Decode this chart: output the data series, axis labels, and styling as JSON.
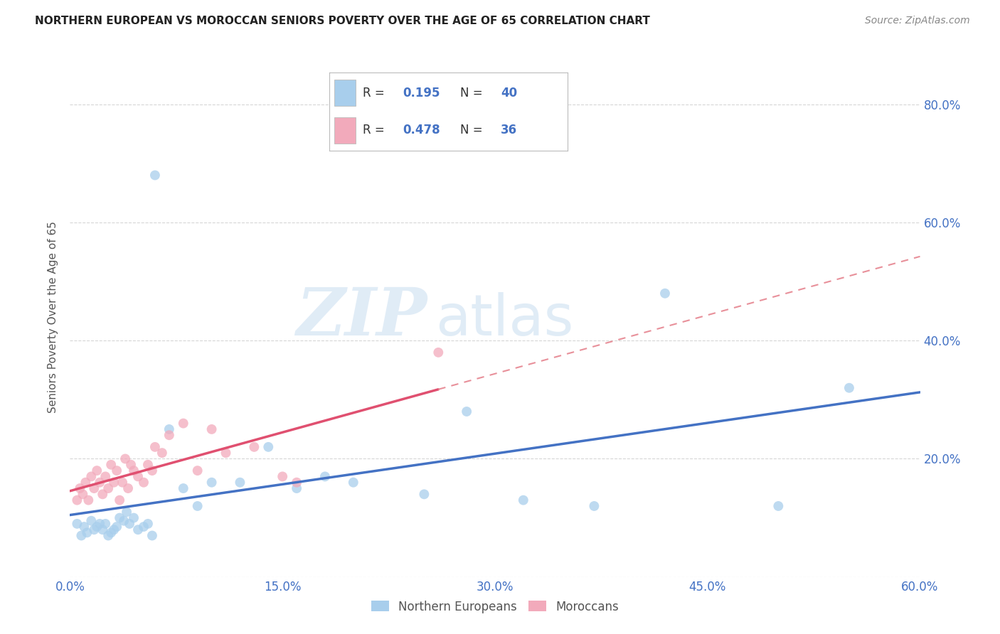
{
  "title": "NORTHERN EUROPEAN VS MOROCCAN SENIORS POVERTY OVER THE AGE OF 65 CORRELATION CHART",
  "source": "Source: ZipAtlas.com",
  "ylabel": "Seniors Poverty Over the Age of 65",
  "xlim": [
    0.0,
    0.6
  ],
  "ylim": [
    0.0,
    0.88
  ],
  "blue_color": "#A8CEEC",
  "pink_color": "#F2AABB",
  "blue_line_color": "#4472C4",
  "pink_line_color": "#E05070",
  "pink_dash_color": "#E8909A",
  "legend_label_blue": "Northern Europeans",
  "legend_label_pink": "Moroccans",
  "watermark_zip": "ZIP",
  "watermark_atlas": "atlas",
  "background_color": "#FFFFFF",
  "grid_color": "#CCCCCC",
  "blue_x": [
    0.005,
    0.008,
    0.01,
    0.012,
    0.015,
    0.017,
    0.019,
    0.021,
    0.023,
    0.025,
    0.027,
    0.029,
    0.031,
    0.033,
    0.035,
    0.038,
    0.04,
    0.042,
    0.045,
    0.048,
    0.052,
    0.055,
    0.058,
    0.06,
    0.07,
    0.08,
    0.09,
    0.1,
    0.12,
    0.14,
    0.16,
    0.18,
    0.2,
    0.25,
    0.28,
    0.32,
    0.37,
    0.42,
    0.5,
    0.55
  ],
  "blue_y": [
    0.09,
    0.07,
    0.085,
    0.075,
    0.095,
    0.08,
    0.085,
    0.09,
    0.08,
    0.09,
    0.07,
    0.075,
    0.08,
    0.085,
    0.1,
    0.095,
    0.11,
    0.09,
    0.1,
    0.08,
    0.085,
    0.09,
    0.07,
    0.68,
    0.25,
    0.15,
    0.12,
    0.16,
    0.16,
    0.22,
    0.15,
    0.17,
    0.16,
    0.14,
    0.28,
    0.13,
    0.12,
    0.48,
    0.12,
    0.32
  ],
  "pink_x": [
    0.005,
    0.007,
    0.009,
    0.011,
    0.013,
    0.015,
    0.017,
    0.019,
    0.021,
    0.023,
    0.025,
    0.027,
    0.029,
    0.031,
    0.033,
    0.035,
    0.037,
    0.039,
    0.041,
    0.043,
    0.045,
    0.048,
    0.052,
    0.055,
    0.058,
    0.06,
    0.065,
    0.07,
    0.08,
    0.09,
    0.1,
    0.11,
    0.13,
    0.15,
    0.16,
    0.26
  ],
  "pink_y": [
    0.13,
    0.15,
    0.14,
    0.16,
    0.13,
    0.17,
    0.15,
    0.18,
    0.16,
    0.14,
    0.17,
    0.15,
    0.19,
    0.16,
    0.18,
    0.13,
    0.16,
    0.2,
    0.15,
    0.19,
    0.18,
    0.17,
    0.16,
    0.19,
    0.18,
    0.22,
    0.21,
    0.24,
    0.26,
    0.18,
    0.25,
    0.21,
    0.22,
    0.17,
    0.16,
    0.38
  ]
}
